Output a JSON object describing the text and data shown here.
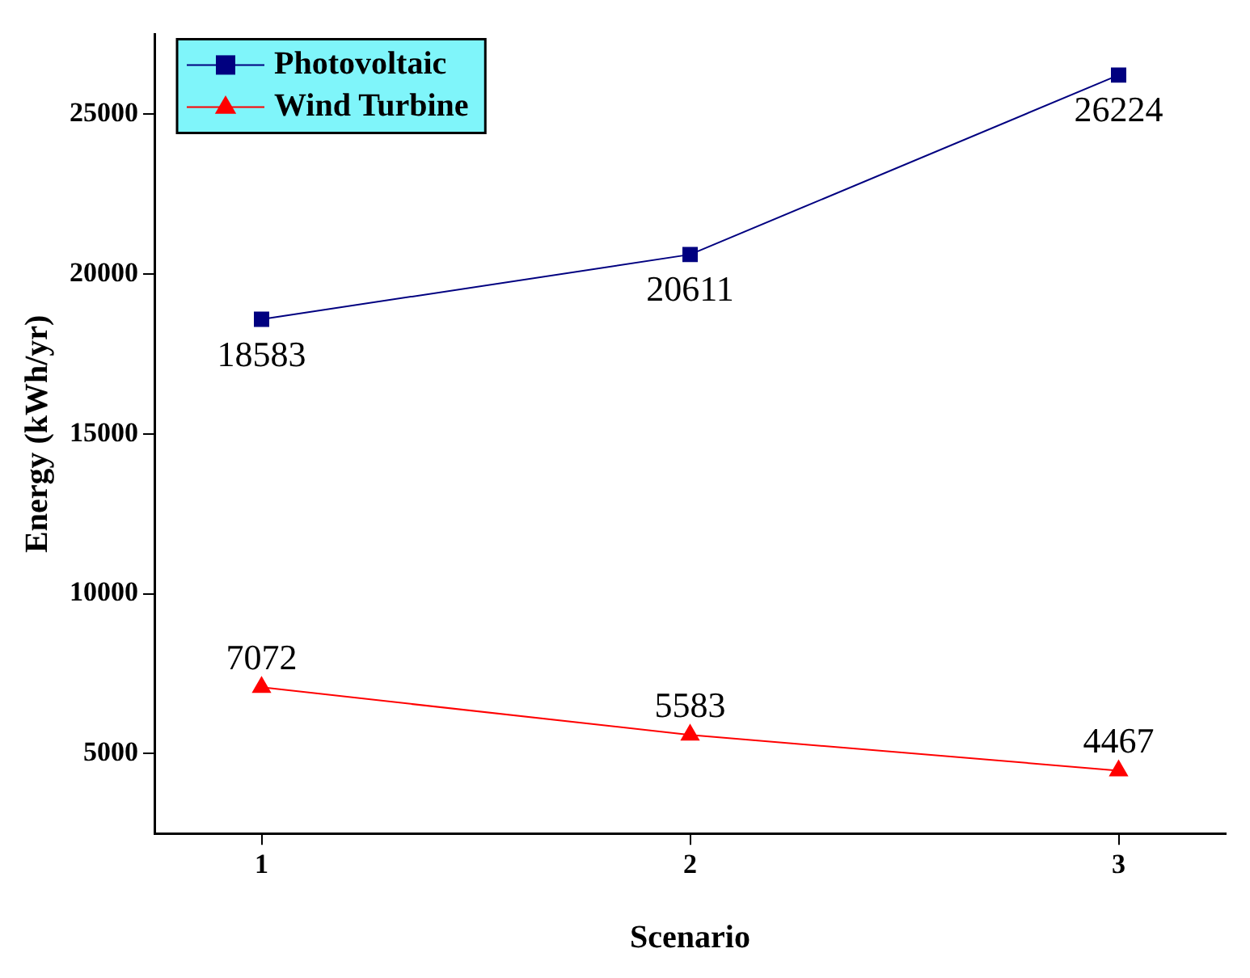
{
  "chart_data": {
    "type": "line",
    "xlabel": "Scenario",
    "ylabel": "Energy (kWh/yr)",
    "x": [
      1,
      2,
      3
    ],
    "series": [
      {
        "name": "Photovoltaic",
        "color": "#000080",
        "marker": "square",
        "values": [
          18583,
          20611,
          26224
        ]
      },
      {
        "name": "Wind Turbine",
        "color": "#ff0000",
        "marker": "triangle",
        "values": [
          7072,
          5583,
          4467
        ]
      }
    ],
    "xlim": [
      0.75,
      3.25
    ],
    "xticks": [
      1,
      2,
      3
    ],
    "ylim": [
      2500,
      27500
    ],
    "yticks": [
      5000,
      10000,
      15000,
      20000,
      25000
    ],
    "grid": false,
    "legend": "top left",
    "data_labels": true
  }
}
